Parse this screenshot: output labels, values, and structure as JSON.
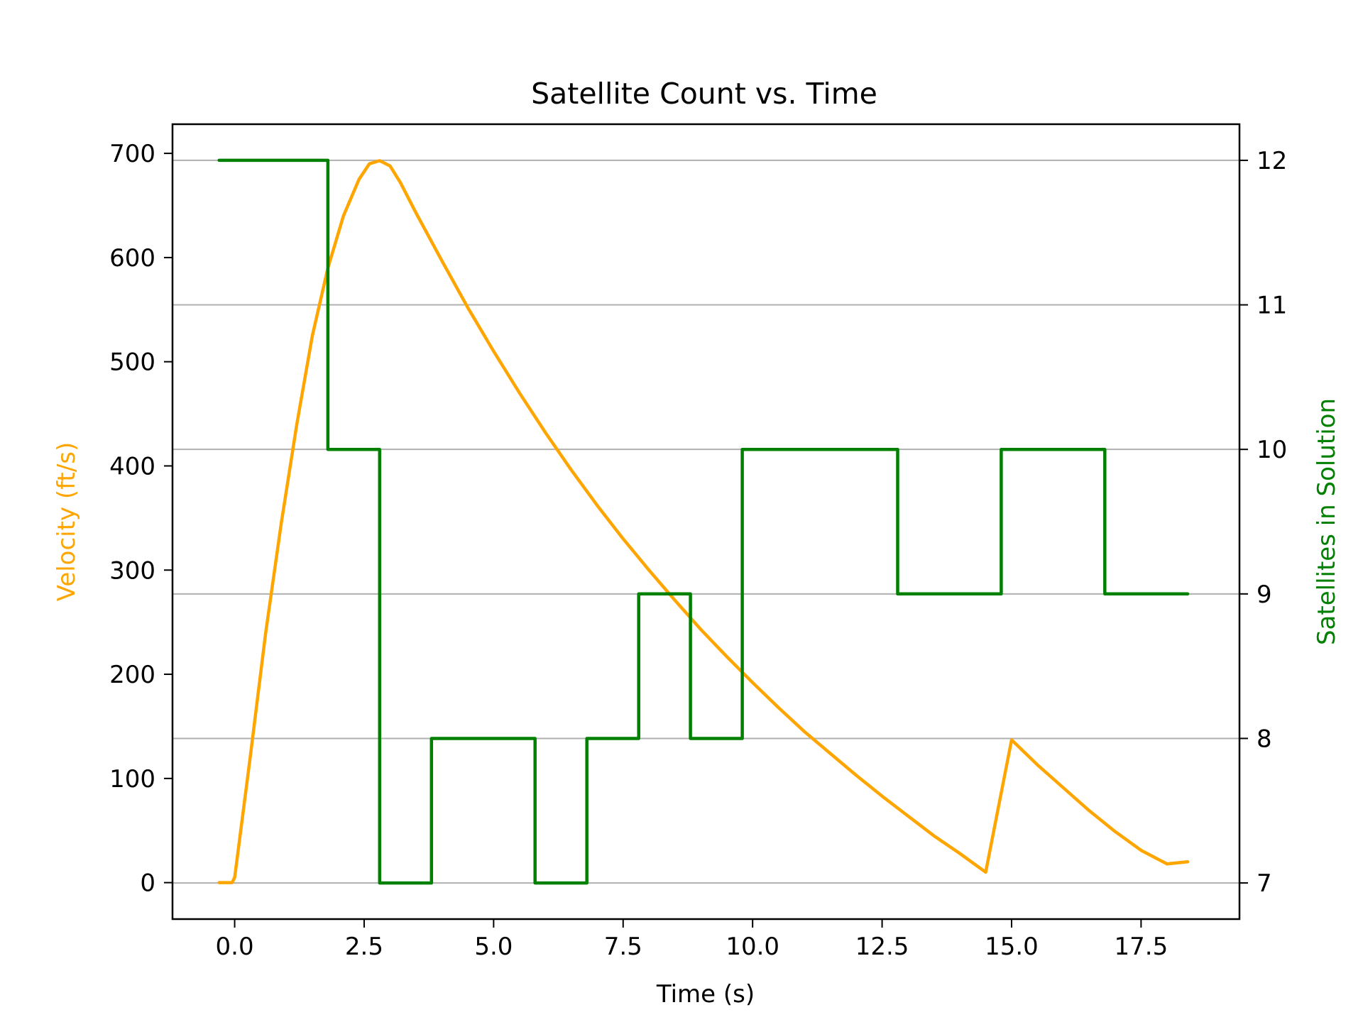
{
  "chart_data": {
    "type": "line",
    "title": "Satellite Count vs. Time",
    "xlabel": "Time (s)",
    "ylabel_left": "Velocity (ft/s)",
    "ylabel_right": "Satellites in Solution",
    "xlim": [
      -1.2,
      19.4
    ],
    "ylim_left": [
      -35,
      728
    ],
    "ylim_right": [
      6.75,
      12.25
    ],
    "x_ticks": [
      0.0,
      2.5,
      5.0,
      7.5,
      10.0,
      12.5,
      15.0,
      17.5
    ],
    "x_tick_labels": [
      "0.0",
      "2.5",
      "5.0",
      "7.5",
      "10.0",
      "12.5",
      "15.0",
      "17.5"
    ],
    "y_left_ticks": [
      0,
      100,
      200,
      300,
      400,
      500,
      600,
      700
    ],
    "y_left_tick_labels": [
      "0",
      "100",
      "200",
      "300",
      "400",
      "500",
      "600",
      "700"
    ],
    "y_right_ticks": [
      7,
      8,
      9,
      10,
      11,
      12
    ],
    "y_right_tick_labels": [
      "7",
      "8",
      "9",
      "10",
      "11",
      "12"
    ],
    "grid": "horizontal lines at right-axis ticks",
    "series": [
      {
        "name": "Velocity (ft/s)",
        "axis": "left",
        "color": "#FFA500",
        "x": [
          -0.3,
          -0.05,
          0.0,
          0.3,
          0.6,
          0.9,
          1.2,
          1.5,
          1.8,
          2.1,
          2.4,
          2.6,
          2.8,
          3.0,
          3.2,
          3.5,
          4.0,
          4.5,
          5.0,
          5.5,
          6.0,
          6.5,
          7.0,
          7.5,
          8.0,
          8.5,
          9.0,
          9.5,
          10.0,
          10.5,
          11.0,
          11.5,
          12.0,
          12.5,
          13.0,
          13.5,
          14.0,
          14.5,
          15.0,
          15.5,
          16.0,
          16.5,
          17.0,
          17.5,
          18.0,
          18.4
        ],
        "values": [
          0,
          0,
          5,
          120,
          240,
          345,
          440,
          525,
          590,
          640,
          675,
          690,
          693,
          688,
          672,
          643,
          597,
          552,
          510,
          470,
          432,
          396,
          362,
          330,
          300,
          271,
          243,
          217,
          192,
          168,
          145,
          124,
          103,
          83,
          64,
          45,
          28,
          10,
          137,
          113,
          91,
          69,
          49,
          31,
          18,
          20
        ],
        "_note_unused": ""
      },
      {
        "name": "Satellites in Solution",
        "axis": "right",
        "color": "#008000",
        "step": "post",
        "x": [
          -0.3,
          1.8,
          2.8,
          3.8,
          5.8,
          6.8,
          7.8,
          8.8,
          9.8,
          12.8,
          14.8,
          16.8,
          18.4
        ],
        "values": [
          12,
          10,
          7,
          8,
          7,
          8,
          9,
          8,
          10,
          9,
          10,
          9,
          9
        ]
      }
    ]
  }
}
